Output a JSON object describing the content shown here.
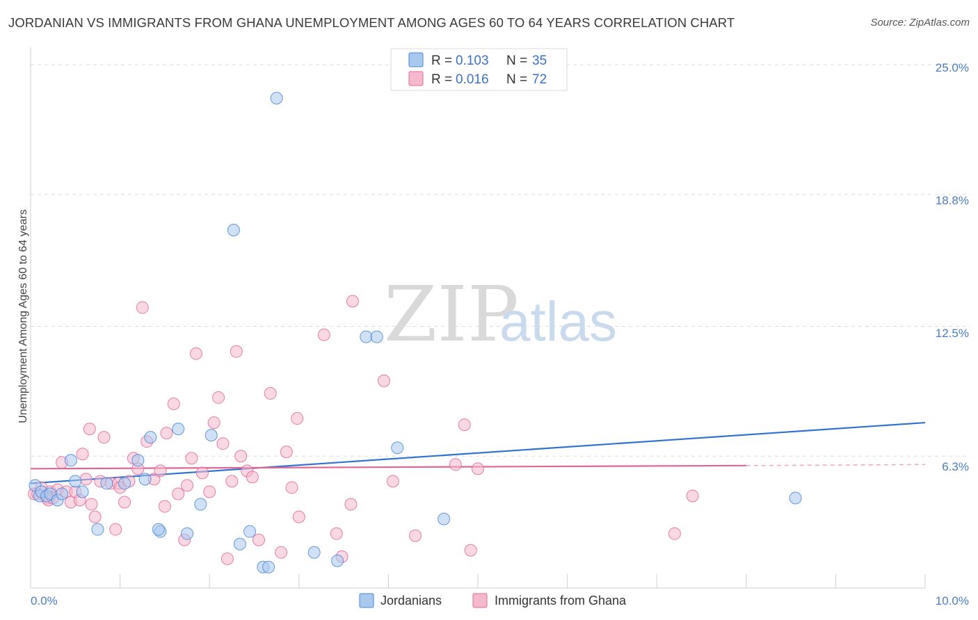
{
  "title": "JORDANIAN VS IMMIGRANTS FROM GHANA UNEMPLOYMENT AMONG AGES 60 TO 64 YEARS CORRELATION CHART",
  "source": "Source: ZipAtlas.com",
  "watermark": {
    "zip": "ZIP",
    "atlas": "atlas"
  },
  "colors": {
    "blue": "#4a86d8",
    "blue_fill": "#a9c8ee",
    "pink": "#e0679a",
    "pink_fill": "#f5b8cc",
    "grid": "#dcdcdc",
    "axis_label": "#4a7cc7"
  },
  "legend": {
    "items": [
      {
        "r_label": "R =",
        "r_value": "0.103",
        "n_label": "N =",
        "n_value": "35"
      },
      {
        "r_label": "R =",
        "r_value": "0.016",
        "n_label": "N =",
        "n_value": "72"
      }
    ]
  },
  "bottom_legend": [
    "Jordanians",
    "Immigrants from Ghana"
  ],
  "chart_data": {
    "type": "scatter",
    "xlabel": "",
    "ylabel": "Unemployment Among Ages 60 to 64 years",
    "xlim": [
      0,
      10
    ],
    "ylim": [
      0,
      25.6
    ],
    "x_tick_labels": [
      "0.0%",
      "10.0%"
    ],
    "y_ticks": [
      6.3,
      12.5,
      18.8,
      25.0
    ],
    "y_tick_labels": [
      "6.3%",
      "12.5%",
      "18.8%",
      "25.0%"
    ],
    "series": [
      {
        "name": "Jordanians",
        "r": 0.103,
        "n": 35,
        "trend": {
          "x": [
            0,
            10
          ],
          "y": [
            5.0,
            7.9
          ]
        },
        "points": [
          [
            0.05,
            4.9
          ],
          [
            0.1,
            4.4
          ],
          [
            0.12,
            4.6
          ],
          [
            0.18,
            4.4
          ],
          [
            0.22,
            4.5
          ],
          [
            0.3,
            4.2
          ],
          [
            0.35,
            4.5
          ],
          [
            0.45,
            6.1
          ],
          [
            0.5,
            5.1
          ],
          [
            0.58,
            4.6
          ],
          [
            0.75,
            2.8
          ],
          [
            0.85,
            5.0
          ],
          [
            1.05,
            5.0
          ],
          [
            1.2,
            6.1
          ],
          [
            1.28,
            5.2
          ],
          [
            1.34,
            7.2
          ],
          [
            1.45,
            2.7
          ],
          [
            1.65,
            7.6
          ],
          [
            1.75,
            2.6
          ],
          [
            1.9,
            4.0
          ],
          [
            2.02,
            7.3
          ],
          [
            2.27,
            17.1
          ],
          [
            2.34,
            2.1
          ],
          [
            2.45,
            2.7
          ],
          [
            2.6,
            1.0
          ],
          [
            2.66,
            1.0
          ],
          [
            2.75,
            23.4
          ],
          [
            3.17,
            1.7
          ],
          [
            3.43,
            1.3
          ],
          [
            3.75,
            12.0
          ],
          [
            3.87,
            12.0
          ],
          [
            4.1,
            6.7
          ],
          [
            4.62,
            3.3
          ],
          [
            8.55,
            4.3
          ],
          [
            1.43,
            2.8
          ]
        ]
      },
      {
        "name": "Immigrants from Ghana",
        "r": 0.016,
        "n": 72,
        "trend": {
          "x": [
            0,
            8.0
          ],
          "y": [
            5.7,
            5.85
          ]
        },
        "trend_dashed": {
          "x": [
            8.0,
            10.0
          ],
          "y": [
            5.85,
            5.9
          ]
        },
        "points": [
          [
            0.04,
            4.5
          ],
          [
            0.08,
            4.5
          ],
          [
            0.12,
            4.8
          ],
          [
            0.18,
            4.3
          ],
          [
            0.22,
            4.6
          ],
          [
            0.3,
            4.7
          ],
          [
            0.35,
            6.0
          ],
          [
            0.4,
            4.6
          ],
          [
            0.45,
            4.1
          ],
          [
            0.5,
            4.6
          ],
          [
            0.55,
            4.2
          ],
          [
            0.58,
            6.4
          ],
          [
            0.62,
            5.2
          ],
          [
            0.68,
            4.0
          ],
          [
            0.72,
            3.4
          ],
          [
            0.78,
            5.1
          ],
          [
            0.82,
            7.2
          ],
          [
            0.9,
            5.0
          ],
          [
            0.95,
            2.8
          ],
          [
            0.98,
            5.0
          ],
          [
            1.05,
            4.1
          ],
          [
            1.15,
            6.2
          ],
          [
            1.2,
            5.7
          ],
          [
            1.25,
            13.4
          ],
          [
            1.3,
            7.0
          ],
          [
            1.38,
            5.2
          ],
          [
            1.45,
            5.6
          ],
          [
            1.5,
            3.9
          ],
          [
            1.52,
            7.4
          ],
          [
            1.6,
            8.8
          ],
          [
            1.65,
            4.5
          ],
          [
            1.72,
            2.3
          ],
          [
            1.75,
            4.9
          ],
          [
            1.8,
            6.2
          ],
          [
            1.85,
            11.2
          ],
          [
            1.92,
            5.5
          ],
          [
            2.0,
            4.6
          ],
          [
            2.05,
            7.9
          ],
          [
            2.1,
            9.1
          ],
          [
            2.15,
            6.9
          ],
          [
            2.2,
            1.4
          ],
          [
            2.25,
            5.1
          ],
          [
            2.3,
            11.3
          ],
          [
            2.35,
            6.3
          ],
          [
            2.42,
            5.6
          ],
          [
            2.48,
            5.3
          ],
          [
            2.55,
            2.3
          ],
          [
            2.68,
            9.3
          ],
          [
            2.8,
            1.7
          ],
          [
            2.86,
            6.5
          ],
          [
            2.92,
            4.8
          ],
          [
            2.98,
            8.1
          ],
          [
            3.0,
            3.4
          ],
          [
            3.28,
            12.1
          ],
          [
            3.42,
            2.6
          ],
          [
            3.48,
            1.5
          ],
          [
            3.58,
            4.0
          ],
          [
            3.6,
            13.7
          ],
          [
            3.95,
            9.9
          ],
          [
            4.05,
            5.1
          ],
          [
            4.3,
            2.5
          ],
          [
            4.75,
            5.9
          ],
          [
            4.85,
            7.8
          ],
          [
            4.92,
            1.8
          ],
          [
            5.0,
            5.7
          ],
          [
            7.4,
            4.4
          ],
          [
            7.2,
            2.6
          ],
          [
            0.66,
            7.6
          ],
          [
            0.2,
            4.2
          ],
          [
            0.25,
            4.3
          ],
          [
            1.0,
            4.8
          ],
          [
            1.1,
            5.1
          ]
        ]
      }
    ]
  }
}
